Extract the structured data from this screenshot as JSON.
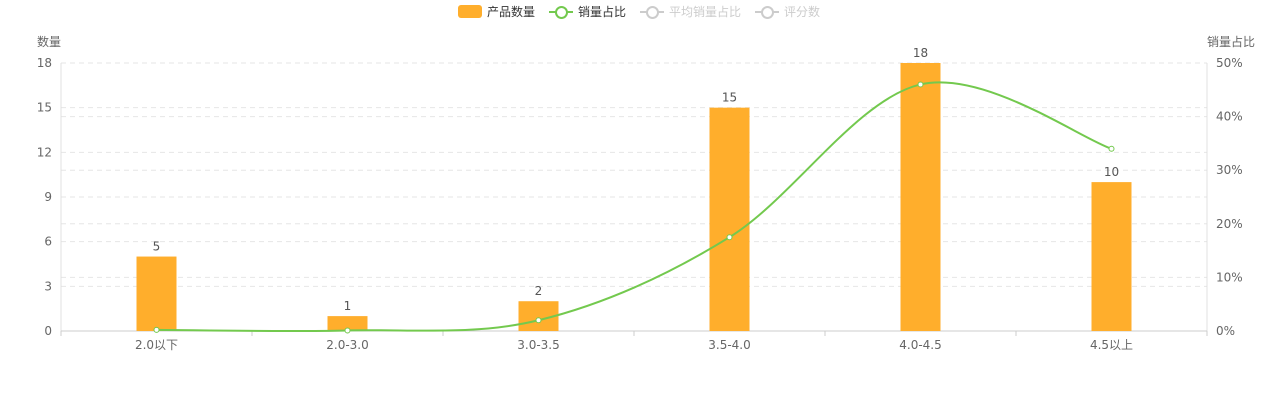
{
  "colors": {
    "bar": "#FFAE2C",
    "line": "#73C94E",
    "inactive": "#cccccc",
    "axis_text": "#666666",
    "grid": "#e6e6e6"
  },
  "legend": [
    {
      "label": "产品数量",
      "kind": "bar",
      "active": true
    },
    {
      "label": "销量占比",
      "kind": "line",
      "active": true
    },
    {
      "label": "平均销量占比",
      "kind": "line",
      "active": false
    },
    {
      "label": "评分数",
      "kind": "line",
      "active": false
    }
  ],
  "chart_data": {
    "type": "bar",
    "categories": [
      "2.0以下",
      "2.0-3.0",
      "3.0-3.5",
      "3.5-4.0",
      "4.0-4.5",
      "4.5以上"
    ],
    "series": [
      {
        "name": "产品数量",
        "type": "bar",
        "axis": "left",
        "values": [
          5,
          1,
          2,
          15,
          18,
          10
        ],
        "labels": [
          "5",
          "1",
          "2",
          "15",
          "18",
          "10"
        ]
      },
      {
        "name": "销量占比",
        "type": "line",
        "axis": "right",
        "smooth": true,
        "values": [
          0.2,
          0.1,
          2.0,
          17.5,
          46.0,
          34.0
        ]
      }
    ],
    "ylabel_left": "数量",
    "ylabel_right": "销量占比",
    "ylim_left": [
      0,
      18
    ],
    "ylim_right": [
      0,
      50
    ],
    "yticks_left": [
      "0",
      "3",
      "6",
      "9",
      "12",
      "15",
      "18"
    ],
    "yticks_right": [
      "0%",
      "10%",
      "20%",
      "30%",
      "40%",
      "50%"
    ],
    "grid": "dashed"
  }
}
